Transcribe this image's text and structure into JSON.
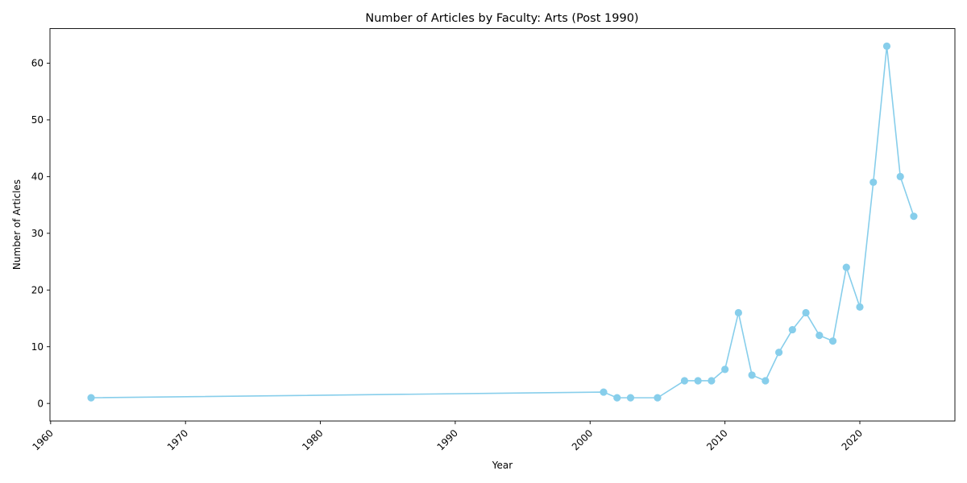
{
  "chart_data": {
    "type": "line",
    "title": "Number of Articles by Faculty: Arts (Post 1990)",
    "xlabel": "Year",
    "ylabel": "Number of Articles",
    "xlim": [
      1959.95,
      1987.05
    ],
    "ylim": [
      -3.1,
      66.1
    ],
    "xticks": [
      1960,
      1970,
      1980,
      1990,
      2000,
      2010,
      2020
    ],
    "yticks": [
      0,
      10,
      20,
      30,
      40,
      50,
      60
    ],
    "grid": false,
    "marker": "circle",
    "color": "#87ceeb",
    "series": [
      {
        "x": [
          1963,
          2001,
          2002,
          2003,
          2005,
          2007,
          2008,
          2009,
          2010,
          2011,
          2012,
          2013,
          2014,
          2015,
          2016,
          2017,
          2018,
          2019,
          2020,
          2021,
          2022,
          2023,
          2024
        ],
        "y": [
          1,
          2,
          1,
          1,
          1,
          4,
          4,
          4,
          6,
          16,
          5,
          4,
          9,
          13,
          16,
          12,
          11,
          24,
          17,
          39,
          63,
          40,
          33
        ]
      }
    ]
  }
}
